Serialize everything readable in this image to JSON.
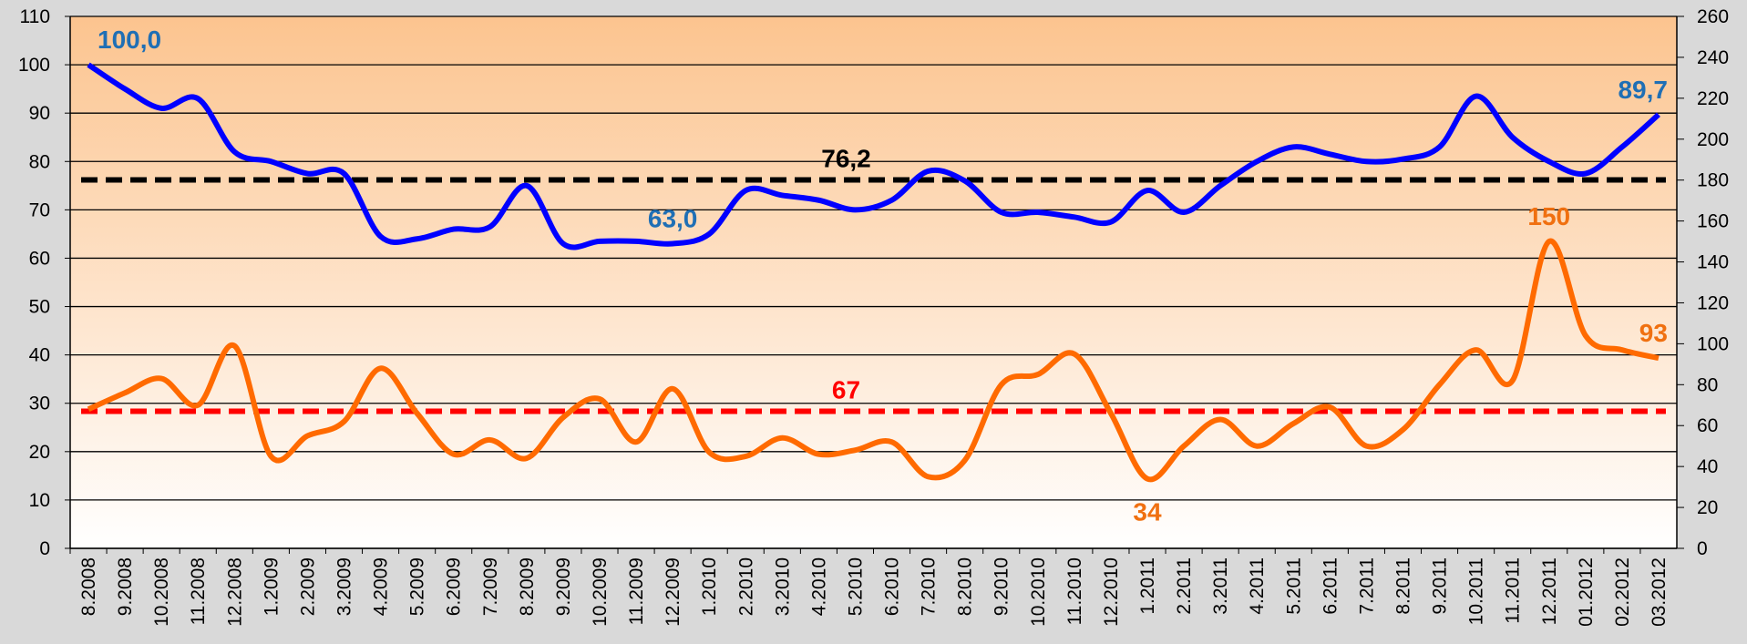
{
  "chart_data": {
    "type": "line",
    "categories": [
      "8.2008",
      "9.2008",
      "10.2008",
      "11.2008",
      "12.2008",
      "1.2009",
      "2.2009",
      "3.2009",
      "4.2009",
      "5.2009",
      "6.2009",
      "7.2009",
      "8.2009",
      "9.2009",
      "10.2009",
      "11.2009",
      "12.2009",
      "1.2010",
      "2.2010",
      "3.2010",
      "4.2010",
      "5.2010",
      "6.2010",
      "7.2010",
      "8.2010",
      "9.2010",
      "10.2010",
      "11.2010",
      "12.2010",
      "1.2011",
      "2.2011",
      "3.2011",
      "4.2011",
      "5.2011",
      "6.2011",
      "7.2011",
      "8.2011",
      "9.2011",
      "10.2011",
      "11.2011",
      "12.2011",
      "01.2012",
      "02.2012",
      "03.2012"
    ],
    "series": [
      {
        "color": "#0000ff",
        "label_color": "#1f6fb5",
        "axis": "y",
        "values": [
          100,
          95,
          91,
          93,
          82,
          80,
          77.5,
          77.5,
          64.5,
          64,
          66,
          66.5,
          75,
          63,
          63.5,
          63.5,
          63,
          65,
          74,
          73,
          72,
          70,
          72,
          78,
          76,
          69.5,
          69.5,
          68.5,
          67.5,
          74,
          69.5,
          75,
          80,
          83,
          81.5,
          80,
          80.5,
          83,
          93.5,
          85,
          80,
          77.5,
          83,
          89.7
        ],
        "value_labels": [
          "100,0",
          null,
          null,
          null,
          null,
          null,
          null,
          null,
          null,
          null,
          null,
          null,
          null,
          null,
          null,
          null,
          "63,0",
          null,
          null,
          null,
          null,
          null,
          null,
          null,
          null,
          null,
          null,
          null,
          null,
          null,
          null,
          null,
          null,
          null,
          null,
          null,
          null,
          null,
          null,
          null,
          null,
          null,
          null,
          "89,7"
        ]
      },
      {
        "color": "#ff6a00",
        "label_color": "#f07010",
        "axis": "y2",
        "values": [
          68,
          76,
          83,
          70,
          99,
          45,
          55,
          62,
          88,
          66,
          46,
          53,
          44,
          64,
          73,
          52,
          78,
          47,
          45,
          54,
          46,
          48,
          52,
          35,
          43,
          80,
          85,
          95,
          66,
          34,
          50,
          63,
          50,
          61,
          69,
          50,
          58,
          80,
          97,
          82,
          150,
          104,
          97,
          93
        ],
        "value_labels": [
          null,
          null,
          null,
          null,
          null,
          null,
          null,
          null,
          null,
          null,
          null,
          null,
          null,
          null,
          null,
          null,
          null,
          null,
          null,
          null,
          null,
          null,
          null,
          null,
          null,
          null,
          null,
          null,
          null,
          "34",
          null,
          null,
          null,
          null,
          null,
          null,
          null,
          null,
          null,
          null,
          "150",
          null,
          null,
          "93"
        ]
      }
    ],
    "reference_lines": [
      {
        "value": 76.2,
        "label": "76,2",
        "color": "#000000",
        "axis": "y"
      },
      {
        "value": 67,
        "label": "67",
        "color": "#ff0000",
        "axis": "y2"
      }
    ],
    "ylim": [
      0,
      110
    ],
    "yticks": [
      0,
      10,
      20,
      30,
      40,
      50,
      60,
      70,
      80,
      90,
      100,
      110
    ],
    "y2lim": [
      0,
      260
    ],
    "y2ticks": [
      0,
      20,
      40,
      60,
      80,
      100,
      120,
      140,
      160,
      180,
      200,
      220,
      240,
      260
    ],
    "grid": true
  }
}
